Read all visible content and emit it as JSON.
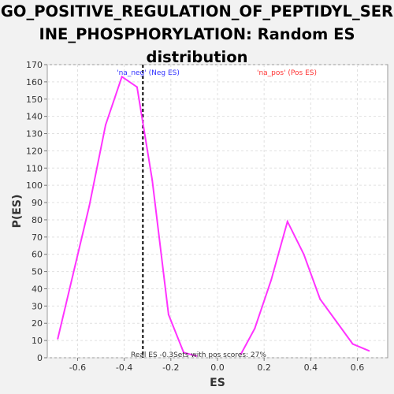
{
  "chart_data": {
    "type": "line",
    "title_lines": [
      "GO_POSITIVE_REGULATION_OF_PEPTIDYL_SER",
      "INE_PHOSPHORYLATION: Random ES",
      "distribution"
    ],
    "xlabel": "ES",
    "ylabel": "P(ES)",
    "xlim": [
      -0.73,
      0.73
    ],
    "ylim": [
      0,
      170
    ],
    "x_ticks": [
      -0.6,
      -0.4,
      -0.2,
      0.0,
      0.2,
      0.4,
      0.6
    ],
    "x_tick_labels": [
      "-0.6",
      "-0.4",
      "-0.2",
      "0.0",
      "0.2",
      "0.4",
      "0.6"
    ],
    "y_ticks": [
      0,
      10,
      20,
      30,
      40,
      50,
      60,
      70,
      80,
      90,
      100,
      110,
      120,
      130,
      140,
      150,
      160,
      170
    ],
    "grid": true,
    "series": [
      {
        "name": "'na_neg' (Neg ES)",
        "color": "#ff33ff",
        "x": [
          -0.685,
          -0.62,
          -0.55,
          -0.48,
          -0.41,
          -0.345,
          -0.28,
          -0.21,
          -0.145,
          -0.09
        ],
        "y": [
          11,
          48,
          88,
          135,
          163,
          157,
          103,
          25,
          3,
          1
        ]
      },
      {
        "name": "'na_pos' (Pos ES)",
        "color": "#ff33ff",
        "x": [
          0.1,
          0.16,
          0.23,
          0.3,
          0.37,
          0.44,
          0.51,
          0.58,
          0.65
        ],
        "y": [
          2,
          17,
          45,
          79,
          60,
          34,
          21,
          8,
          4
        ]
      }
    ],
    "legend": [
      {
        "label": "'na_neg' (Neg ES)",
        "color": "#3333ff"
      },
      {
        "label": "'na_pos' (Pos ES)",
        "color": "#ff3333"
      }
    ],
    "real_es": -0.32,
    "annotation": "Real ES -0.3Sets with pos scores: 27%"
  }
}
